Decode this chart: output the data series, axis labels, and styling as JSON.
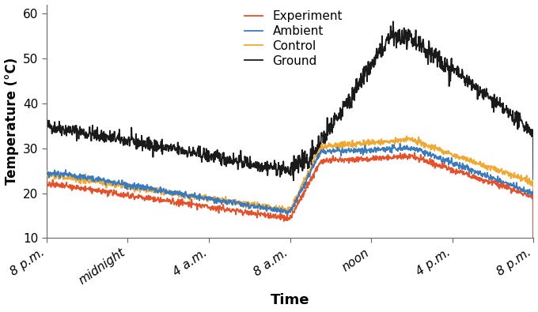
{
  "title": "",
  "xlabel": "Time",
  "ylabel": "Temperature (°C)",
  "ylim": [
    10,
    62
  ],
  "xlim": [
    0,
    24
  ],
  "xtick_positions": [
    0,
    4,
    8,
    12,
    16,
    20,
    24
  ],
  "xtick_labels": [
    "8 p.m.",
    "midnight",
    "4 a.m.",
    "8 a.m.",
    "noon",
    "4 p.m.",
    "8 p.m."
  ],
  "ytick_positions": [
    10,
    20,
    30,
    40,
    50,
    60
  ],
  "ytick_labels": [
    "10",
    "20",
    "30",
    "40",
    "50",
    "60"
  ],
  "legend_labels": [
    "Experiment",
    "Control",
    "Ambient",
    "Ground"
  ],
  "legend_colors": [
    "#e8502a",
    "#f0a830",
    "#3a7bbf",
    "#1a1a1a"
  ],
  "background_color": "#ffffff",
  "noise_seed": 42
}
